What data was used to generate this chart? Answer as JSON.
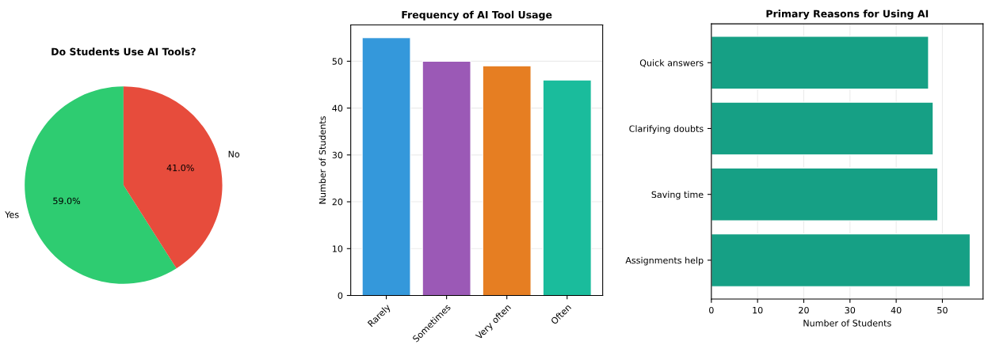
{
  "chart_data": [
    {
      "type": "pie",
      "title": "Do Students Use AI Tools?",
      "categories": [
        "Yes",
        "No"
      ],
      "values": [
        59,
        41
      ],
      "colors": [
        "#2ecc71",
        "#e74c3c"
      ],
      "value_labels": [
        "59.0%",
        "41.0%"
      ]
    },
    {
      "type": "bar",
      "title": "Frequency of AI Tool Usage",
      "ylabel": "Number of Students",
      "categories": [
        "Rarely",
        "Sometimes",
        "Very often",
        "Often"
      ],
      "values": [
        55,
        50,
        49,
        46
      ],
      "colors": [
        "#3498db",
        "#9b59b6",
        "#e67e22",
        "#1abc9c"
      ],
      "ylim": [
        0,
        57.75
      ],
      "yticks": [
        0,
        10,
        20,
        30,
        40,
        50
      ],
      "grid": "y"
    },
    {
      "type": "bar",
      "orientation": "horizontal",
      "title": "Primary Reasons for Using AI",
      "xlabel": "Number of Students",
      "categories": [
        "Quick answers",
        "Clarifying doubts",
        "Saving time",
        "Assignments help"
      ],
      "values": [
        47,
        48,
        49,
        56
      ],
      "color": "#16a085",
      "xlim": [
        0,
        58.8
      ],
      "xticks": [
        0,
        10,
        20,
        30,
        40,
        50
      ],
      "grid": "x"
    }
  ]
}
